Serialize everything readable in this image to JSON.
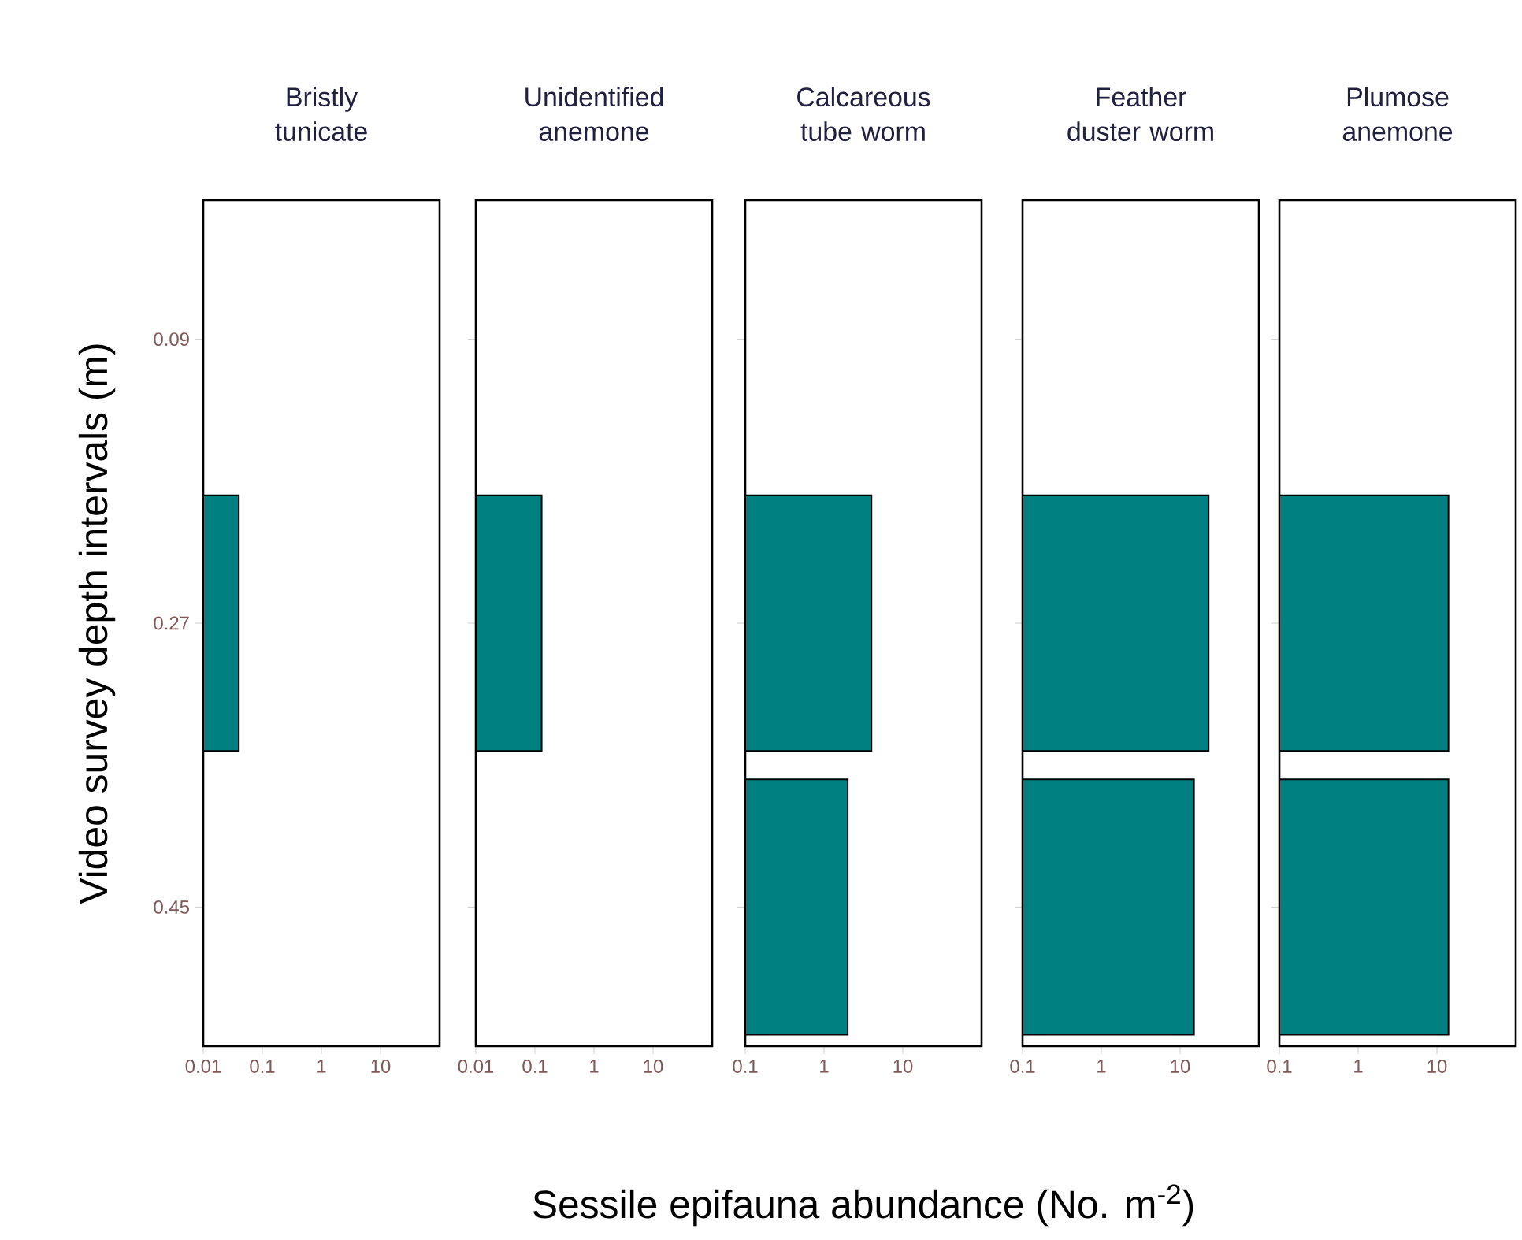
{
  "chart_data": [
    {
      "type": "bar",
      "orientation": "horizontal",
      "title": "Bristly tunicate",
      "ylabel": "Video survey depth intervals (m)",
      "categories": [
        "0.09",
        "0.27",
        "0.45"
      ],
      "values": [
        null,
        0.04,
        null
      ],
      "color": "#008080",
      "log": "x",
      "xlim": [
        0.01,
        100
      ],
      "xticks": [
        0.01,
        0.1,
        1,
        10
      ]
    },
    {
      "type": "bar",
      "orientation": "horizontal",
      "title": "Unidentified anemone",
      "categories": [
        "0.09",
        "0.27",
        "0.45"
      ],
      "values": [
        null,
        0.13,
        null
      ],
      "color": "#008080",
      "log": "x",
      "xlim": [
        0.01,
        100
      ],
      "xticks": [
        0.01,
        0.1,
        1,
        10
      ],
      "tick_labels": "x"
    },
    {
      "type": "bar",
      "orientation": "horizontal",
      "title": "Calcareous tube worm",
      "xlabel": "Sessile epifauna abundance (No. m$^{-2}$)",
      "categories": [
        "0.09",
        "0.27",
        "0.45"
      ],
      "values": [
        null,
        4,
        2
      ],
      "color": "#008080",
      "log": "x",
      "xlim": [
        0.1,
        100
      ],
      "xticks": [
        0.1,
        1,
        10
      ],
      "tick_labels": "x"
    },
    {
      "type": "bar",
      "orientation": "horizontal",
      "title": "Feather duster worm",
      "categories": [
        "0.09",
        "0.27",
        "0.45"
      ],
      "values": [
        null,
        23,
        15
      ],
      "color": "#008080",
      "log": "x",
      "xlim": [
        0.1,
        100
      ],
      "xticks": [
        0.1,
        1,
        10
      ],
      "tick_labels": "x"
    },
    {
      "type": "bar",
      "orientation": "horizontal",
      "title": "Plumose anemone",
      "categories": [
        "0.09",
        "0.27",
        "0.45"
      ],
      "values": [
        null,
        14,
        14
      ],
      "color": "#008080",
      "log": "x",
      "xlim": [
        0.1,
        100
      ],
      "xticks": [
        0.1,
        1,
        10
      ],
      "tick_labels": "x"
    }
  ]
}
